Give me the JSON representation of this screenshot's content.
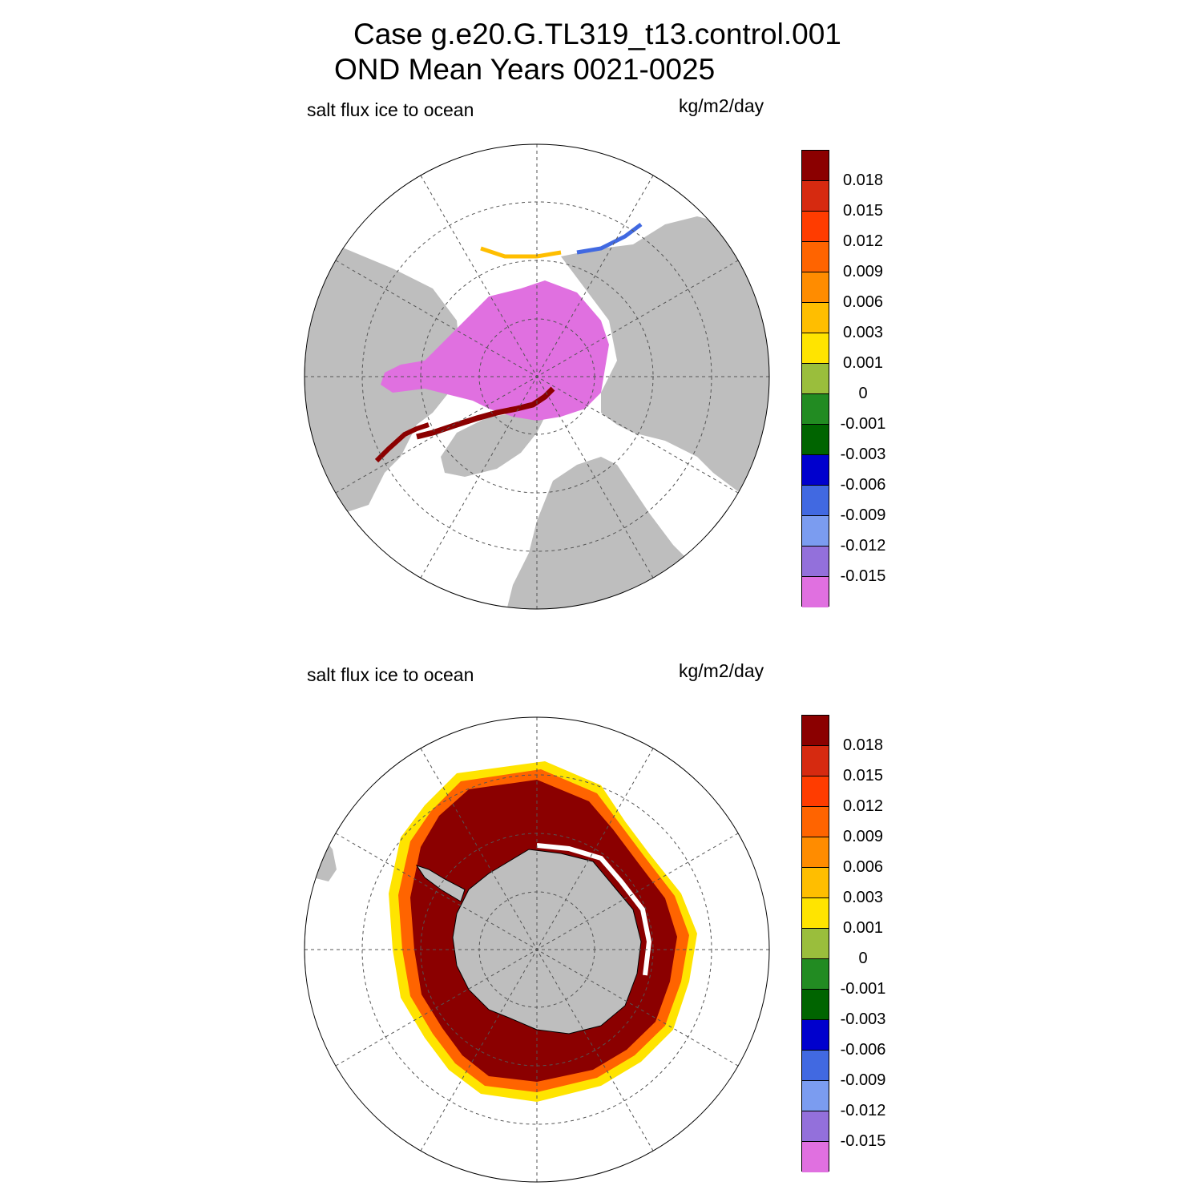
{
  "title": {
    "line1": "Case g.e20.G.TL319_t13.control.001",
    "line2": "OND Mean   Years 0021-0025"
  },
  "colors": {
    "land": "#bebebe",
    "ocean": "#ffffff",
    "grid": "#555555",
    "scale": [
      "#8b0000",
      "#d62a10",
      "#ff3c00",
      "#ff6400",
      "#ff8c00",
      "#ffbe00",
      "#ffe400",
      "#9abe3c",
      "#228b22",
      "#006400",
      "#0000cd",
      "#4169e1",
      "#7b9cf0",
      "#9370db",
      "#e070e0"
    ]
  },
  "panels": [
    {
      "id": "arctic",
      "variable": "salt flux ice to ocean",
      "units": "kg/m2/day",
      "projection": "north-polar-stereographic"
    },
    {
      "id": "antarctic",
      "variable": "salt flux ice to ocean",
      "units": "kg/m2/day",
      "projection": "south-polar-stereographic"
    }
  ],
  "colorbar": {
    "labels": [
      "0.018",
      "0.015",
      "0.012",
      "0.009",
      "0.006",
      "0.003",
      "0.001",
      "0",
      "-0.001",
      "-0.003",
      "-0.006",
      "-0.009",
      "-0.012",
      "-0.015"
    ]
  }
}
